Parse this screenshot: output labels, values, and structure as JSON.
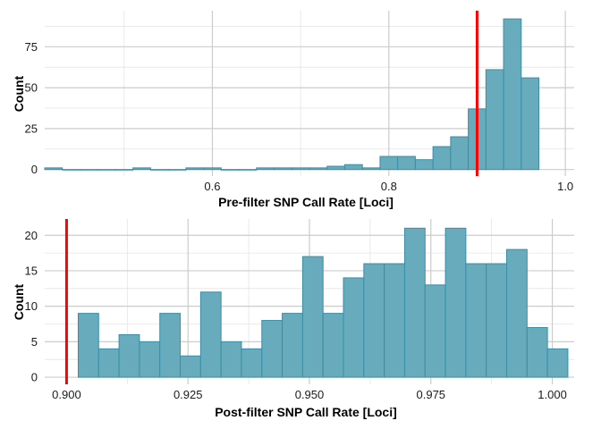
{
  "colors": {
    "bar_fill": "#67abbc",
    "bar_stroke": "#3a8ea8",
    "threshold_line": "#ff0000",
    "grid_major": "#cccccc",
    "grid_minor": "#e4e4e4",
    "background": "#ffffff"
  },
  "chart_data": [
    {
      "type": "bar",
      "subtype": "histogram",
      "xlabel": "Pre-filter SNP Call Rate [Loci]",
      "ylabel": "Count",
      "xlim": [
        0.41,
        1.01
      ],
      "ylim": [
        -4,
        97
      ],
      "xticks": [
        0.6,
        0.8,
        1.0
      ],
      "xtick_labels": [
        "0.6",
        "0.8",
        "1.0"
      ],
      "yticks": [
        0,
        25,
        50,
        75
      ],
      "ytick_labels": [
        "0",
        "25",
        "50",
        "75"
      ],
      "grid": true,
      "threshold": 0.9,
      "bin_width": 0.02,
      "bins": [
        {
          "x0": 0.41,
          "x1": 0.43,
          "count": 1
        },
        {
          "x0": 0.43,
          "x1": 0.45,
          "count": 0
        },
        {
          "x0": 0.45,
          "x1": 0.47,
          "count": 0
        },
        {
          "x0": 0.47,
          "x1": 0.49,
          "count": 0
        },
        {
          "x0": 0.49,
          "x1": 0.51,
          "count": 0
        },
        {
          "x0": 0.51,
          "x1": 0.53,
          "count": 1
        },
        {
          "x0": 0.53,
          "x1": 0.55,
          "count": 0
        },
        {
          "x0": 0.55,
          "x1": 0.57,
          "count": 0
        },
        {
          "x0": 0.57,
          "x1": 0.59,
          "count": 1
        },
        {
          "x0": 0.59,
          "x1": 0.61,
          "count": 1
        },
        {
          "x0": 0.61,
          "x1": 0.63,
          "count": 0
        },
        {
          "x0": 0.63,
          "x1": 0.65,
          "count": 0
        },
        {
          "x0": 0.65,
          "x1": 0.67,
          "count": 1
        },
        {
          "x0": 0.67,
          "x1": 0.69,
          "count": 1
        },
        {
          "x0": 0.69,
          "x1": 0.71,
          "count": 1
        },
        {
          "x0": 0.71,
          "x1": 0.73,
          "count": 1
        },
        {
          "x0": 0.73,
          "x1": 0.75,
          "count": 2
        },
        {
          "x0": 0.75,
          "x1": 0.77,
          "count": 3
        },
        {
          "x0": 0.77,
          "x1": 0.79,
          "count": 1
        },
        {
          "x0": 0.79,
          "x1": 0.81,
          "count": 8
        },
        {
          "x0": 0.81,
          "x1": 0.83,
          "count": 8
        },
        {
          "x0": 0.83,
          "x1": 0.85,
          "count": 6
        },
        {
          "x0": 0.85,
          "x1": 0.87,
          "count": 14
        },
        {
          "x0": 0.87,
          "x1": 0.89,
          "count": 20
        },
        {
          "x0": 0.89,
          "x1": 0.91,
          "count": 37
        },
        {
          "x0": 0.91,
          "x1": 0.93,
          "count": 61
        },
        {
          "x0": 0.93,
          "x1": 0.95,
          "count": 92
        },
        {
          "x0": 0.95,
          "x1": 0.97,
          "count": 56
        }
      ]
    },
    {
      "type": "bar",
      "subtype": "histogram",
      "xlabel": "Post-filter SNP Call Rate [Loci]",
      "ylabel": "Count",
      "xlim": [
        0.8955,
        1.0045
      ],
      "ylim": [
        -1,
        22.3
      ],
      "xticks": [
        0.9,
        0.925,
        0.95,
        0.975,
        1.0
      ],
      "xtick_labels": [
        "0.900",
        "0.925",
        "0.950",
        "0.975",
        "1.000"
      ],
      "yticks": [
        0,
        5,
        10,
        15,
        20
      ],
      "ytick_labels": [
        "0",
        "5",
        "10",
        "15",
        "20"
      ],
      "grid": true,
      "threshold": 0.9,
      "bin_width": 0.0042,
      "bins": [
        {
          "x0": 0.9024,
          "x1": 0.9066,
          "count": 9
        },
        {
          "x0": 0.9066,
          "x1": 0.9108,
          "count": 4
        },
        {
          "x0": 0.9108,
          "x1": 0.915,
          "count": 6
        },
        {
          "x0": 0.915,
          "x1": 0.9192,
          "count": 5
        },
        {
          "x0": 0.9192,
          "x1": 0.9234,
          "count": 9
        },
        {
          "x0": 0.9234,
          "x1": 0.9276,
          "count": 3
        },
        {
          "x0": 0.9276,
          "x1": 0.9318,
          "count": 12
        },
        {
          "x0": 0.9318,
          "x1": 0.936,
          "count": 5
        },
        {
          "x0": 0.936,
          "x1": 0.9402,
          "count": 4
        },
        {
          "x0": 0.9402,
          "x1": 0.9444,
          "count": 8
        },
        {
          "x0": 0.9444,
          "x1": 0.9486,
          "count": 9
        },
        {
          "x0": 0.9486,
          "x1": 0.9528,
          "count": 17
        },
        {
          "x0": 0.9528,
          "x1": 0.957,
          "count": 9
        },
        {
          "x0": 0.957,
          "x1": 0.9612,
          "count": 14
        },
        {
          "x0": 0.9612,
          "x1": 0.9654,
          "count": 16
        },
        {
          "x0": 0.9654,
          "x1": 0.9696,
          "count": 16
        },
        {
          "x0": 0.9696,
          "x1": 0.9738,
          "count": 21
        },
        {
          "x0": 0.9738,
          "x1": 0.978,
          "count": 13
        },
        {
          "x0": 0.978,
          "x1": 0.9822,
          "count": 21
        },
        {
          "x0": 0.9822,
          "x1": 0.9864,
          "count": 16
        },
        {
          "x0": 0.9864,
          "x1": 0.9906,
          "count": 16
        },
        {
          "x0": 0.9906,
          "x1": 0.9948,
          "count": 18
        },
        {
          "x0": 0.9948,
          "x1": 0.999,
          "count": 7
        },
        {
          "x0": 0.999,
          "x1": 1.0032,
          "count": 4
        }
      ]
    }
  ]
}
